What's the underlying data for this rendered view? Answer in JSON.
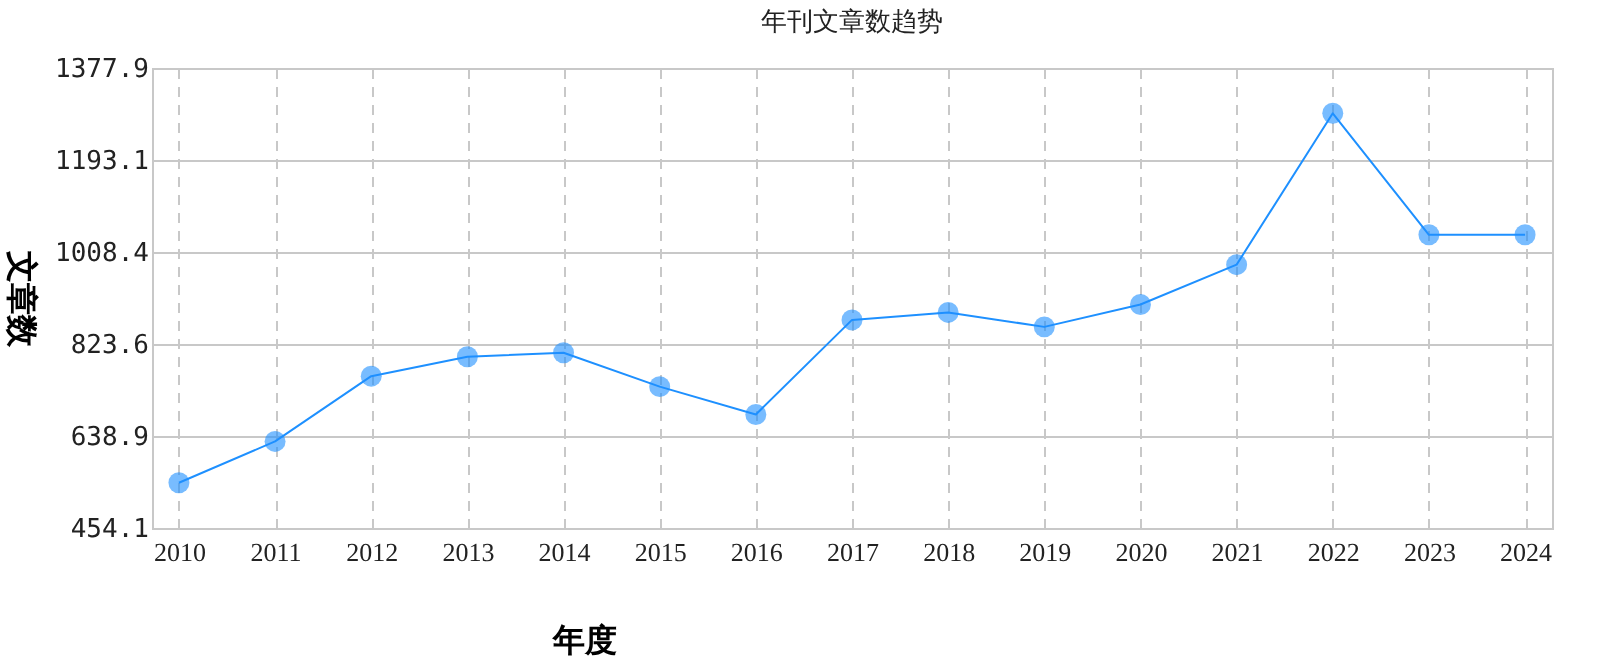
{
  "chart_data": {
    "type": "line",
    "title": "年刊文章数趋势",
    "xlabel": "年度",
    "ylabel": "文章数",
    "categories": [
      "2010",
      "2011",
      "2012",
      "2013",
      "2014",
      "2015",
      "2016",
      "2017",
      "2018",
      "2019",
      "2020",
      "2021",
      "2022",
      "2023",
      "2024"
    ],
    "series": [
      {
        "color": "#1e90ff",
        "values": [
          545,
          628,
          759,
          798,
          806,
          738,
          682,
          872,
          887,
          858,
          903,
          983,
          1287,
          1043,
          1043
        ]
      }
    ],
    "ylim": [
      454.1,
      1377.9
    ],
    "yticks": [
      454.1,
      638.9,
      823.6,
      1008.4,
      1193.1,
      1377.9
    ],
    "grid": true,
    "marker": "circle",
    "line_style": "solid"
  }
}
